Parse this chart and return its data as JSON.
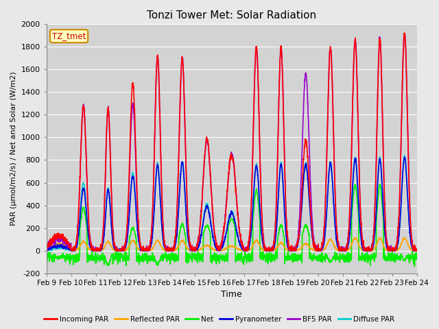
{
  "title": "Tonzi Tower Met: Solar Radiation",
  "xlabel": "Time",
  "ylabel": "PAR (μmol/m2/s) / Net and Solar (W/m2)",
  "ylim": [
    -200,
    2000
  ],
  "background_color": "#e8e8e8",
  "plot_bg_color": "#d3d3d3",
  "label_box": "TZ_tmet",
  "xtick_labels": [
    "Feb 9",
    "Feb 10",
    "Feb 11",
    "Feb 12",
    "Feb 13",
    "Feb 14",
    "Feb 15",
    "Feb 16",
    "Feb 17",
    "Feb 18",
    "Feb 19",
    "Feb 20",
    "Feb 21",
    "Feb 22",
    "Feb 23",
    "Feb 24"
  ],
  "series": {
    "Incoming PAR": {
      "color": "#ff0000",
      "lw": 1.2
    },
    "Reflected PAR": {
      "color": "#ffa500",
      "lw": 1.2
    },
    "Net": {
      "color": "#00ee00",
      "lw": 1.2
    },
    "Pyranometer": {
      "color": "#0000dd",
      "lw": 1.2
    },
    "BF5 PAR": {
      "color": "#9900cc",
      "lw": 1.2
    },
    "Diffuse PAR": {
      "color": "#00cccc",
      "lw": 1.2
    }
  },
  "n_days": 15,
  "pts_per_day": 144,
  "ytick_values": [
    -200,
    0,
    200,
    400,
    600,
    800,
    1000,
    1200,
    1400,
    1600,
    1800,
    2000
  ],
  "grid_color": "#ffffff",
  "day_peaks_incoming": [
    130,
    1280,
    1260,
    1480,
    1720,
    1700,
    980,
    850,
    1800,
    1800,
    980,
    1800,
    1860,
    1870,
    1920
  ],
  "day_peaks_reflected": [
    60,
    80,
    80,
    90,
    90,
    90,
    45,
    40,
    90,
    70,
    60,
    100,
    110,
    110,
    110
  ],
  "day_peaks_net": [
    -60,
    380,
    -130,
    200,
    -120,
    230,
    220,
    280,
    530,
    220,
    220,
    -100,
    580,
    580,
    -80
  ],
  "day_peaks_pyrano": [
    40,
    550,
    540,
    660,
    750,
    780,
    390,
    330,
    750,
    760,
    760,
    770,
    810,
    810,
    820
  ],
  "day_peaks_bf5": [
    100,
    1280,
    1260,
    1300,
    1720,
    1700,
    980,
    850,
    1800,
    1800,
    1560,
    1800,
    1860,
    1870,
    1920
  ],
  "day_peaks_diffuse": [
    30,
    600,
    550,
    680,
    770,
    790,
    410,
    340,
    760,
    770,
    770,
    780,
    820,
    820,
    830
  ],
  "day_widths": [
    0.8,
    0.3,
    0.25,
    0.3,
    0.28,
    0.3,
    0.4,
    0.45,
    0.3,
    0.28,
    0.35,
    0.3,
    0.3,
    0.28,
    0.3
  ]
}
